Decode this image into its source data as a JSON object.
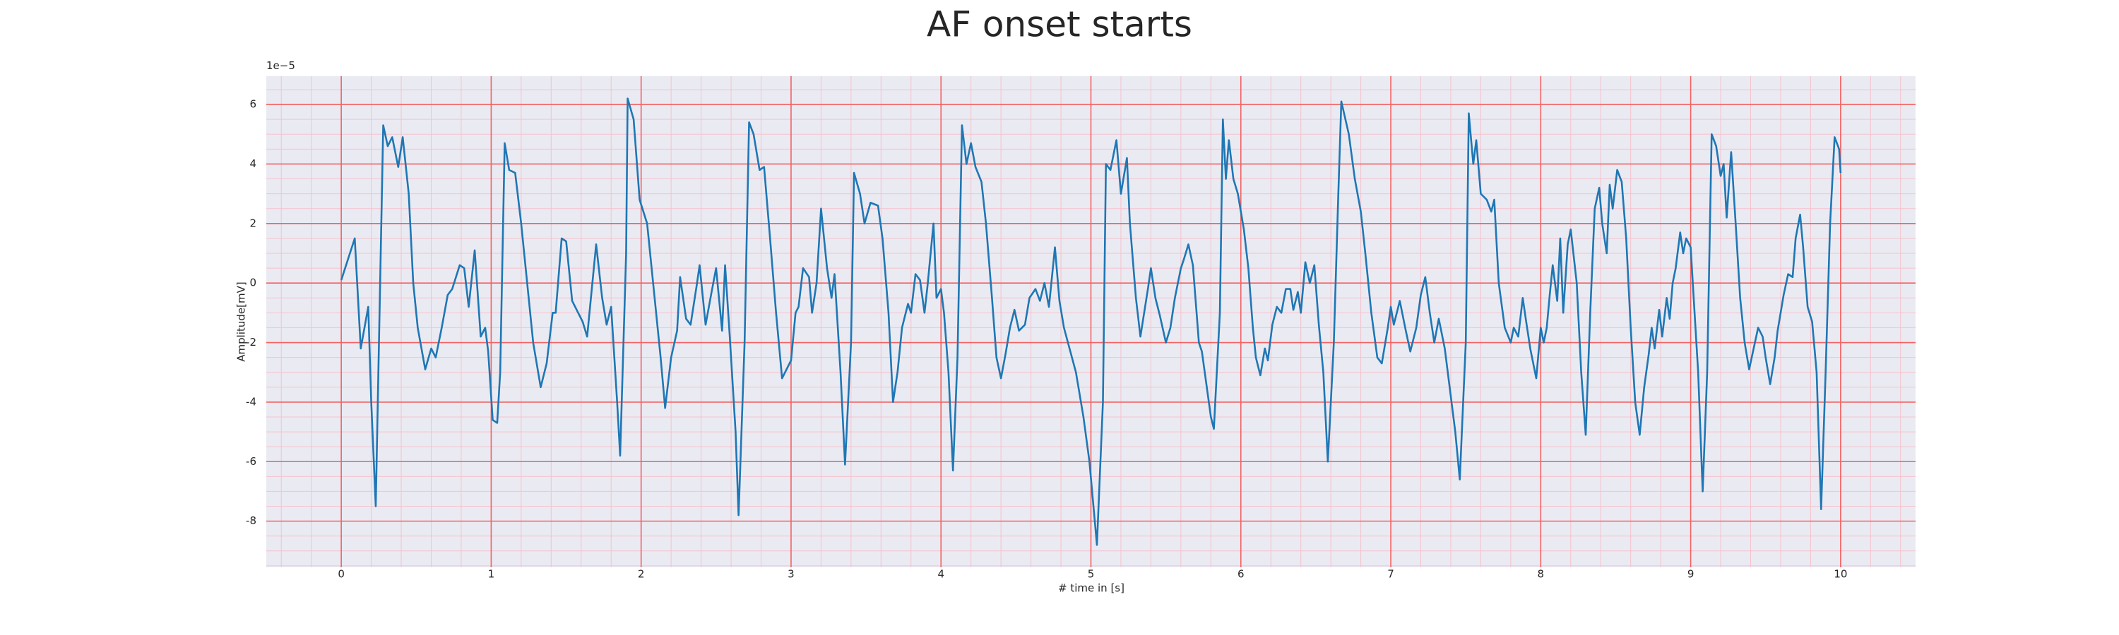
{
  "chart_data": {
    "type": "line",
    "title": "AF onset starts",
    "x_label": "# time in [s]",
    "y_label": "Amplitude[mV]",
    "y_offset_label": "1e−5",
    "color": "#1f77b4",
    "grid": true,
    "minor_grid": true,
    "grid_color": "#f26262",
    "minor_grid_color": "#f5c2cc",
    "background": "#eaeaf2",
    "xlim": [
      -0.5,
      10.5
    ],
    "ylim": [
      -9.55,
      6.95
    ],
    "xticks": [
      0,
      1,
      2,
      3,
      4,
      5,
      6,
      7,
      8,
      9,
      10
    ],
    "yticks": [
      -8,
      -6,
      -4,
      -2,
      0,
      2,
      4,
      6
    ],
    "x": [
      0,
      0.09,
      0.13,
      0.18,
      0.2,
      0.23,
      0.28,
      0.31,
      0.34,
      0.38,
      0.41,
      0.45,
      0.48,
      0.51,
      0.56,
      0.6,
      0.63,
      0.67,
      0.71,
      0.74,
      0.79,
      0.82,
      0.85,
      0.89,
      0.93,
      0.96,
      0.98,
      1.01,
      1.04,
      1.06,
      1.09,
      1.12,
      1.16,
      1.2,
      1.24,
      1.28,
      1.33,
      1.37,
      1.41,
      1.43,
      1.47,
      1.5,
      1.54,
      1.58,
      1.61,
      1.64,
      1.7,
      1.74,
      1.77,
      1.8,
      1.84,
      1.86,
      1.9,
      1.91,
      1.95,
      1.99,
      2.04,
      2.08,
      2.13,
      2.16,
      2.2,
      2.24,
      2.26,
      2.3,
      2.33,
      2.37,
      2.39,
      2.43,
      2.47,
      2.5,
      2.54,
      2.56,
      2.59,
      2.63,
      2.65,
      2.69,
      2.72,
      2.75,
      2.79,
      2.82,
      2.86,
      2.9,
      2.94,
      2.98,
      3.0,
      3.03,
      3.05,
      3.08,
      3.12,
      3.14,
      3.17,
      3.2,
      3.24,
      3.27,
      3.29,
      3.33,
      3.36,
      3.4,
      3.42,
      3.46,
      3.49,
      3.53,
      3.58,
      3.61,
      3.65,
      3.68,
      3.71,
      3.74,
      3.78,
      3.8,
      3.83,
      3.86,
      3.89,
      3.91,
      3.95,
      3.97,
      4.0,
      4.02,
      4.05,
      4.08,
      4.11,
      4.14,
      4.17,
      4.2,
      4.23,
      4.27,
      4.3,
      4.34,
      4.37,
      4.4,
      4.43,
      4.46,
      4.49,
      4.52,
      4.56,
      4.59,
      4.63,
      4.66,
      4.69,
      4.72,
      4.76,
      4.79,
      4.82,
      4.9,
      4.95,
      4.99,
      5.04,
      5.08,
      5.1,
      5.13,
      5.17,
      5.2,
      5.24,
      5.26,
      5.3,
      5.33,
      5.38,
      5.4,
      5.43,
      5.46,
      5.5,
      5.53,
      5.56,
      5.6,
      5.62,
      5.65,
      5.68,
      5.72,
      5.74,
      5.8,
      5.82,
      5.86,
      5.88,
      5.9,
      5.92,
      5.95,
      5.98,
      6.02,
      6.05,
      6.08,
      6.1,
      6.13,
      6.16,
      6.18,
      6.21,
      6.24,
      6.27,
      6.3,
      6.33,
      6.35,
      6.38,
      6.4,
      6.43,
      6.46,
      6.49,
      6.52,
      6.55,
      6.58,
      6.62,
      6.65,
      6.67,
      6.72,
      6.76,
      6.8,
      6.83,
      6.87,
      6.91,
      6.94,
      6.98,
      7.0,
      7.02,
      7.06,
      7.1,
      7.13,
      7.17,
      7.2,
      7.23,
      7.26,
      7.29,
      7.32,
      7.36,
      7.43,
      7.46,
      7.5,
      7.52,
      7.55,
      7.57,
      7.6,
      7.64,
      7.67,
      7.69,
      7.72,
      7.76,
      7.8,
      7.82,
      7.85,
      7.88,
      7.9,
      7.93,
      7.97,
      8.0,
      8.02,
      8.04,
      8.06,
      8.08,
      8.11,
      8.13,
      8.15,
      8.18,
      8.2,
      8.24,
      8.27,
      8.3,
      8.33,
      8.36,
      8.39,
      8.41,
      8.44,
      8.46,
      8.48,
      8.51,
      8.54,
      8.57,
      8.6,
      8.63,
      8.66,
      8.69,
      8.72,
      8.74,
      8.76,
      8.79,
      8.81,
      8.84,
      8.86,
      8.88,
      8.9,
      8.93,
      8.95,
      8.97,
      9.0,
      9.02,
      9.05,
      9.08,
      9.11,
      9.14,
      9.17,
      9.2,
      9.22,
      9.24,
      9.27,
      9.3,
      9.33,
      9.36,
      9.39,
      9.42,
      9.45,
      9.48,
      9.5,
      9.53,
      9.56,
      9.58,
      9.62,
      9.65,
      9.68,
      9.7,
      9.73,
      9.75,
      9.78,
      9.81,
      9.84,
      9.87,
      9.9,
      9.93,
      9.96,
      9.99,
      10.0
    ],
    "values": [
      0.1,
      1.5,
      -2.2,
      -0.8,
      -4,
      -7.5,
      5.3,
      4.6,
      4.9,
      3.9,
      4.9,
      3,
      0,
      -1.5,
      -2.9,
      -2.2,
      -2.5,
      -1.5,
      -0.4,
      -0.2,
      0.6,
      0.5,
      -0.8,
      1.1,
      -1.8,
      -1.5,
      -2.3,
      -4.6,
      -4.7,
      -3,
      4.7,
      3.8,
      3.7,
      2,
      0,
      -2,
      -3.5,
      -2.7,
      -1,
      -1,
      1.5,
      1.4,
      -0.6,
      -1,
      -1.3,
      -1.8,
      1.3,
      -0.5,
      -1.4,
      -0.8,
      -4,
      -5.8,
      1,
      6.2,
      5.5,
      2.8,
      2,
      0,
      -2.5,
      -4.2,
      -2.5,
      -1.6,
      0.2,
      -1.2,
      -1.4,
      -0.1,
      0.6,
      -1.4,
      -0.3,
      0.5,
      -1.6,
      0.6,
      -1.7,
      -5,
      -7.8,
      -2,
      5.4,
      5,
      3.8,
      3.9,
      1.5,
      -1,
      -3.2,
      -2.8,
      -2.6,
      -1,
      -0.8,
      0.5,
      0.2,
      -1,
      0,
      2.5,
      0.5,
      -0.5,
      0.3,
      -3,
      -6.1,
      -2,
      3.7,
      3,
      2,
      2.7,
      2.6,
      1.5,
      -1,
      -4,
      -3,
      -1.5,
      -0.7,
      -1,
      0.3,
      0.1,
      -1,
      -0.1,
      2,
      -0.5,
      -0.2,
      -1,
      -3,
      -6.3,
      -2.5,
      5.3,
      4,
      4.7,
      3.9,
      3.4,
      2,
      -0.5,
      -2.5,
      -3.2,
      -2.4,
      -1.5,
      -0.9,
      -1.6,
      -1.4,
      -0.5,
      -0.2,
      -0.6,
      0,
      -0.8,
      1.2,
      -0.6,
      -1.5,
      -3,
      -4.5,
      -6,
      -8.8,
      -4,
      4,
      3.8,
      4.8,
      3,
      4.2,
      2,
      -0.5,
      -1.8,
      -0.2,
      0.5,
      -0.5,
      -1.1,
      -2,
      -1.5,
      -0.5,
      0.5,
      0.8,
      1.3,
      0.6,
      -2,
      -2.3,
      -4.5,
      -4.9,
      -1,
      5.5,
      3.5,
      4.8,
      3.5,
      3,
      1.8,
      0.5,
      -1.5,
      -2.5,
      -3.1,
      -2.2,
      -2.6,
      -1.4,
      -0.8,
      -1,
      -0.2,
      -0.2,
      -0.9,
      -0.3,
      -1,
      0.7,
      0,
      0.6,
      -1.4,
      -3,
      -6,
      -2,
      3,
      6.1,
      5,
      3.5,
      2.4,
      1,
      -1,
      -2.5,
      -2.7,
      -1.5,
      -0.8,
      -1.4,
      -0.6,
      -1.6,
      -2.3,
      -1.5,
      -0.4,
      0.2,
      -1,
      -2,
      -1.2,
      -2.2,
      -5,
      -6.6,
      -2,
      5.7,
      4,
      4.8,
      3,
      2.8,
      2.4,
      2.8,
      0,
      -1.5,
      -2,
      -1.5,
      -1.8,
      -0.5,
      -1.2,
      -2.2,
      -3.2,
      -1.5,
      -2,
      -1.5,
      -0.4,
      0.6,
      -0.6,
      1.5,
      -1,
      1.3,
      1.8,
      0,
      -3,
      -5.1,
      -1,
      2.5,
      3.2,
      2,
      1,
      3.3,
      2.5,
      3.8,
      3.4,
      1.5,
      -1.5,
      -4,
      -5.1,
      -3.5,
      -2.4,
      -1.5,
      -2.2,
      -0.9,
      -1.8,
      -0.5,
      -1.2,
      0,
      0.5,
      1.7,
      1,
      1.5,
      1.2,
      -0.5,
      -3,
      -7,
      -3,
      5,
      4.6,
      3.6,
      4,
      2.2,
      4.4,
      2,
      -0.5,
      -2,
      -2.9,
      -2.2,
      -1.5,
      -1.8,
      -2.5,
      -3.4,
      -2.5,
      -1.6,
      -0.4,
      0.3,
      0.2,
      1.5,
      2.3,
      1.2,
      -0.8,
      -1.3,
      -3,
      -7.6,
      -3,
      2,
      4.9,
      4.5,
      3.7
    ]
  }
}
